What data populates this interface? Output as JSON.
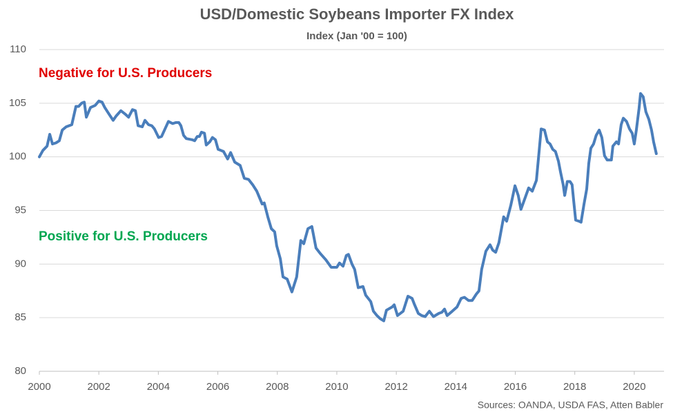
{
  "chart_data": {
    "type": "line",
    "title": "USD/Domestic Soybeans Importer FX Index",
    "subtitle": "Index (Jan '00 = 100)",
    "source": "Sources: OANDA, USDA FAS, Atten Babler",
    "annotations": [
      {
        "text": "Negative for U.S. Producers",
        "color": "#e00000"
      },
      {
        "text": "Positive for U.S. Producers",
        "color": "#00a650"
      }
    ],
    "color": "#4a7ebb",
    "grid": true,
    "xlim": [
      2000,
      2021
    ],
    "xticks": [
      2000,
      2002,
      2004,
      2006,
      2008,
      2010,
      2012,
      2014,
      2016,
      2018,
      2020
    ],
    "ylim": [
      80,
      110
    ],
    "yticks": [
      80,
      85,
      90,
      95,
      100,
      105,
      110
    ],
    "x": [
      2000.0,
      2000.12,
      2000.26,
      2000.35,
      2000.44,
      2000.56,
      2000.67,
      2000.77,
      2000.9,
      2001.09,
      2001.23,
      2001.32,
      2001.42,
      2001.51,
      2001.58,
      2001.72,
      2001.88,
      2002.0,
      2002.11,
      2002.2,
      2002.34,
      2002.48,
      2002.58,
      2002.74,
      2002.88,
      2003.0,
      2003.13,
      2003.23,
      2003.32,
      2003.46,
      2003.55,
      2003.67,
      2003.78,
      2003.87,
      2004.01,
      2004.11,
      2004.34,
      2004.48,
      2004.59,
      2004.69,
      2004.76,
      2004.85,
      2004.94,
      2005.13,
      2005.22,
      2005.31,
      2005.38,
      2005.45,
      2005.55,
      2005.61,
      2005.73,
      2005.82,
      2005.92,
      2006.01,
      2006.1,
      2006.19,
      2006.33,
      2006.43,
      2006.57,
      2006.75,
      2006.89,
      2007.03,
      2007.17,
      2007.31,
      2007.4,
      2007.49,
      2007.56,
      2007.68,
      2007.8,
      2007.91,
      2007.98,
      2008.1,
      2008.19,
      2008.33,
      2008.49,
      2008.65,
      2008.79,
      2008.89,
      2009.03,
      2009.16,
      2009.3,
      2009.44,
      2009.63,
      2009.81,
      2010.0,
      2010.09,
      2010.21,
      2010.32,
      2010.39,
      2010.51,
      2010.6,
      2010.72,
      2010.88,
      2010.97,
      2011.14,
      2011.23,
      2011.35,
      2011.46,
      2011.58,
      2011.67,
      2011.86,
      2011.93,
      2012.04,
      2012.23,
      2012.39,
      2012.53,
      2012.6,
      2012.74,
      2012.85,
      2012.97,
      2013.11,
      2013.25,
      2013.43,
      2013.53,
      2013.62,
      2013.71,
      2013.88,
      2014.04,
      2014.18,
      2014.29,
      2014.43,
      2014.55,
      2014.69,
      2014.78,
      2014.87,
      2015.01,
      2015.15,
      2015.24,
      2015.34,
      2015.45,
      2015.61,
      2015.71,
      2015.85,
      2015.99,
      2016.1,
      2016.19,
      2016.36,
      2016.45,
      2016.57,
      2016.71,
      2016.8,
      2016.87,
      2016.98,
      2017.08,
      2017.17,
      2017.26,
      2017.35,
      2017.45,
      2017.52,
      2017.61,
      2017.66,
      2017.75,
      2017.84,
      2017.91,
      2017.98,
      2018.03,
      2018.14,
      2018.21,
      2018.31,
      2018.4,
      2018.47,
      2018.54,
      2018.63,
      2018.72,
      2018.82,
      2018.91,
      2019.0,
      2019.09,
      2019.23,
      2019.28,
      2019.4,
      2019.47,
      2019.56,
      2019.63,
      2019.74,
      2019.84,
      2019.93,
      2020.0,
      2020.07,
      2020.16,
      2020.21,
      2020.3,
      2020.39,
      2020.49,
      2020.58,
      2020.65,
      2020.74
    ],
    "values": [
      100,
      100.6,
      101,
      102.1,
      101.2,
      101.3,
      101.5,
      102.5,
      102.8,
      103,
      104.7,
      104.7,
      105,
      105.1,
      103.7,
      104.6,
      104.8,
      105.2,
      105.1,
      104.6,
      104,
      103.4,
      103.8,
      104.3,
      104,
      103.7,
      104.4,
      104.3,
      102.9,
      102.8,
      103.4,
      103,
      102.9,
      102.6,
      101.8,
      101.9,
      103.3,
      103.1,
      103.2,
      103.2,
      102.9,
      102,
      101.7,
      101.6,
      101.5,
      101.9,
      101.9,
      102.3,
      102.2,
      101.1,
      101.4,
      101.8,
      101.6,
      100.7,
      100.6,
      100.5,
      99.8,
      100.4,
      99.5,
      99.2,
      98,
      97.9,
      97.4,
      96.8,
      96.2,
      95.6,
      95.7,
      94.4,
      93.3,
      93,
      91.7,
      90.5,
      88.8,
      88.6,
      87.4,
      88.8,
      92.2,
      91.9,
      93.3,
      93.5,
      91.5,
      91,
      90.4,
      89.7,
      89.7,
      90.1,
      89.8,
      90.8,
      90.9,
      90,
      89.5,
      87.8,
      87.9,
      87.1,
      86.5,
      85.6,
      85.2,
      84.9,
      84.7,
      85.7,
      86,
      86.2,
      85.2,
      85.6,
      87,
      86.8,
      86.3,
      85.4,
      85.2,
      85.1,
      85.6,
      85.1,
      85.4,
      85.5,
      85.8,
      85.2,
      85.6,
      86,
      86.8,
      86.9,
      86.6,
      86.6,
      87.2,
      87.5,
      89.5,
      91.2,
      91.8,
      91.3,
      91.1,
      92,
      94.4,
      94,
      95.5,
      97.3,
      96.4,
      95.1,
      96.4,
      97.1,
      96.8,
      97.8,
      100.5,
      102.6,
      102.5,
      101.4,
      101.2,
      100.7,
      100.5,
      99.6,
      98.6,
      97.4,
      96.4,
      97.7,
      97.7,
      97.4,
      95.4,
      94.1,
      94,
      93.9,
      95.6,
      97,
      99.4,
      100.8,
      101.2,
      102,
      102.5,
      101.8,
      100.1,
      99.7,
      99.7,
      101,
      101.4,
      101.2,
      103,
      103.6,
      103.3,
      102.6,
      102.2,
      101.2,
      102.5,
      104.5,
      105.9,
      105.6,
      104.2,
      103.5,
      102.5,
      101.4,
      100.3
    ]
  }
}
